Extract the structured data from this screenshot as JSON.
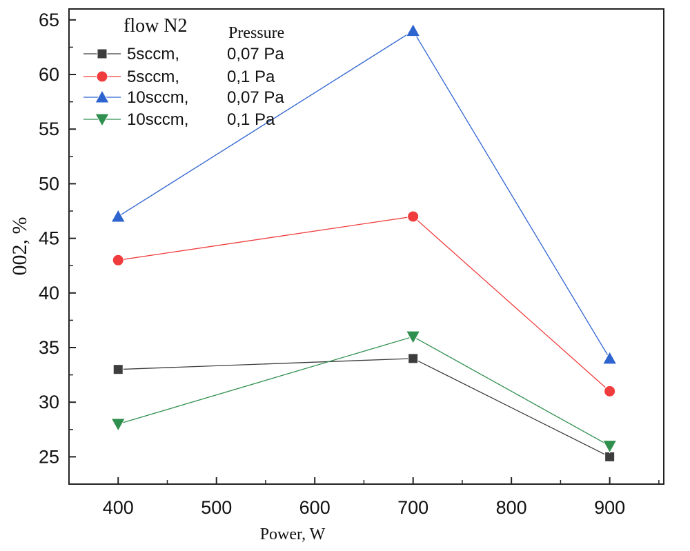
{
  "chart_data": {
    "type": "line",
    "x": [
      400,
      700,
      900
    ],
    "xlabel": "Power, W",
    "ylabel": "002, %",
    "xlim": [
      350,
      955
    ],
    "ylim": [
      22.5,
      66
    ],
    "xticks": [
      "400",
      "500",
      "600",
      "700",
      "800",
      "900"
    ],
    "yticks": [
      "25",
      "30",
      "35",
      "40",
      "45",
      "50",
      "55",
      "60",
      "65"
    ],
    "grid": false,
    "legend_position": "top-left",
    "legend_title": "flow N2",
    "legend_column_title": "Pressure",
    "series": [
      {
        "name": "5sccm,",
        "pressure": "0,07 Pa",
        "values": [
          33,
          34,
          25
        ],
        "color": "#3d3d3d",
        "marker": "square"
      },
      {
        "name": "5sccm,",
        "pressure": "0,1 Pa",
        "values": [
          43,
          47,
          31
        ],
        "color": "#f03c3c",
        "marker": "circle"
      },
      {
        "name": "10sccm,",
        "pressure": "0,07 Pa",
        "values": [
          47,
          64,
          34
        ],
        "color": "#2e64cf",
        "marker": "triangle-up"
      },
      {
        "name": "10sccm,",
        "pressure": "0,1 Pa",
        "values": [
          28,
          36,
          26
        ],
        "color": "#2f8f4e",
        "marker": "triangle-down"
      }
    ]
  }
}
